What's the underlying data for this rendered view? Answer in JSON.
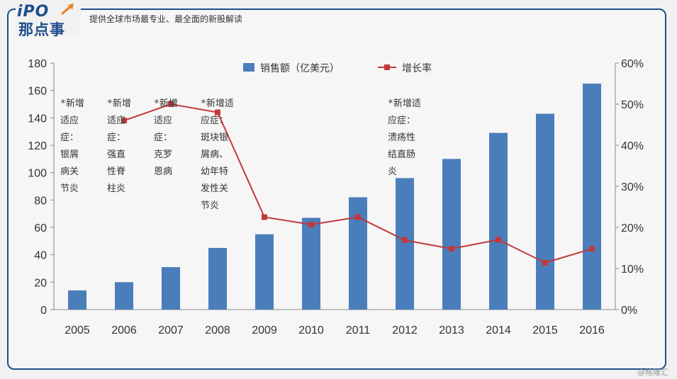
{
  "header": {
    "logo_top": "iPO",
    "logo_bottom": "那点事",
    "tagline": "提供全球市场最专业、最全面的新股解读"
  },
  "watermark": "@格隆汇",
  "colors": {
    "bar": "#4a7ebb",
    "line": "#c0393b",
    "frame": "#1f4e8c"
  },
  "chart_data": {
    "type": "bar",
    "categories": [
      "2005",
      "2006",
      "2007",
      "2008",
      "2009",
      "2010",
      "2011",
      "2012",
      "2013",
      "2014",
      "2015",
      "2016"
    ],
    "series": [
      {
        "name": "销售额（亿美元）",
        "type": "bar",
        "axis": "left",
        "values": [
          14,
          20,
          31,
          45,
          55,
          67,
          82,
          96,
          110,
          129,
          143,
          165
        ]
      },
      {
        "name": "增长率",
        "type": "line",
        "axis": "right",
        "values": [
          null,
          46,
          50,
          48,
          22.5,
          20.7,
          22.5,
          16.9,
          14.8,
          17,
          11.4,
          14.8
        ]
      }
    ],
    "y_left": {
      "min": 0,
      "max": 180,
      "ticks": [
        0,
        20,
        40,
        60,
        80,
        100,
        120,
        140,
        160,
        180
      ]
    },
    "y_right": {
      "min": 0,
      "max": 60,
      "ticks": [
        "0%",
        "10%",
        "20%",
        "30%",
        "40%",
        "50%",
        "60%"
      ]
    },
    "legend": {
      "position": "top-center"
    },
    "annotations": [
      {
        "category": "2005",
        "lines": [
          "*新增",
          "适应",
          "症：",
          "银屑",
          "病关",
          "节炎"
        ]
      },
      {
        "category": "2006",
        "lines": [
          "*新增",
          "适应",
          "症：",
          "强直",
          "性脊",
          "柱炎"
        ]
      },
      {
        "category": "2007",
        "lines": [
          "*新增",
          "适应",
          "症：",
          "克罗",
          "恩病"
        ]
      },
      {
        "category": "2008",
        "lines": [
          "*新增适",
          "应症：",
          "斑块银",
          "屑病、",
          "幼年特",
          "发性关",
          "节炎"
        ]
      },
      {
        "category": "2012",
        "lines": [
          "*新增适",
          "应症：",
          "溃疡性",
          "结直肠",
          "炎"
        ]
      }
    ],
    "grid": false
  }
}
